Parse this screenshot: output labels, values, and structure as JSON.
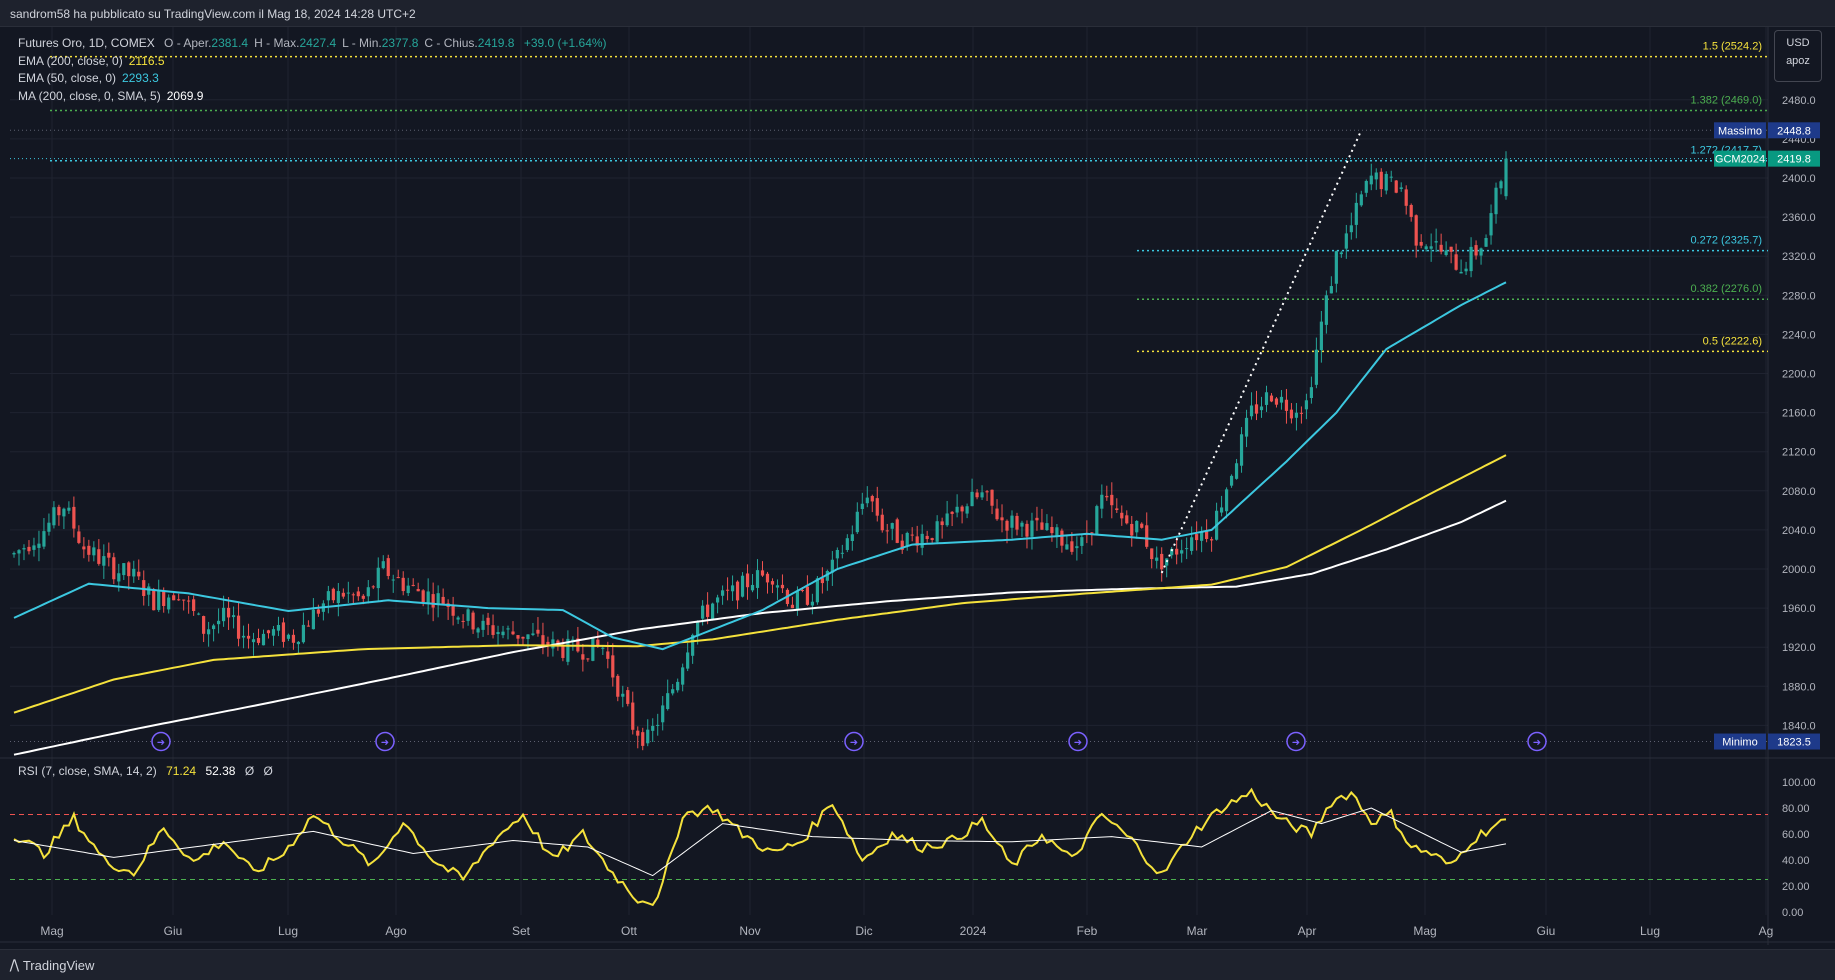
{
  "header": {
    "publisher": "sandrom58 ha pubblicato su TradingView.com il Mag 18, 2024 14:28 UTC+2"
  },
  "legend": {
    "symbol": "Futures Oro, 1D, COMEX",
    "ohlc": [
      {
        "label": "O - Aper.",
        "value": "2381.4"
      },
      {
        "label": "H - Max.",
        "value": "2427.4"
      },
      {
        "label": "L - Min.",
        "value": "2377.8"
      },
      {
        "label": "C - Chius.",
        "value": "2419.8"
      }
    ],
    "change": "+39.0 (+1.64%)",
    "indicators": [
      {
        "label": "EMA (200, close, 0)",
        "value": "2116.5",
        "color": "#f5e23c"
      },
      {
        "label": "EMA (50, close, 0)",
        "value": "2293.3",
        "color": "#3cc8e0"
      },
      {
        "label": "MA (200, close, 0, SMA, 5)",
        "value": "2069.9",
        "color": "#ffffff"
      }
    ]
  },
  "currency": {
    "code": "USD",
    "sub": "apoz"
  },
  "colors": {
    "bg": "#131722",
    "up": "#26a69a",
    "down": "#ef5350",
    "ema200": "#f5e23c",
    "ema50": "#3cc8e0",
    "sma200": "#ffffff",
    "rsi": "#f5e23c",
    "rsi_ma": "#ffffff",
    "accent_blue": "#1e3a8a",
    "gcm": "#089981"
  },
  "chart_data": [
    {
      "type": "candlestick",
      "title": "Futures Oro, 1D, COMEX",
      "ylim": [
        1800,
        2530
      ],
      "y_ticks": [
        1840.0,
        1880.0,
        1920.0,
        1960.0,
        2000.0,
        2040.0,
        2080.0,
        2120.0,
        2160.0,
        2200.0,
        2240.0,
        2280.0,
        2320.0,
        2360.0,
        2400.0,
        2440.0,
        2480.0
      ],
      "x_labels": [
        "Mag",
        "Giu",
        "Lug",
        "Ago",
        "Set",
        "Ott",
        "Nov",
        "Dic",
        "2024",
        "Feb",
        "Mar",
        "Apr",
        "Mag",
        "Giu",
        "Lug",
        "Ag"
      ],
      "trend_pivots": [
        {
          "i": 0,
          "v": 2015
        },
        {
          "i": 6,
          "v": 2040
        },
        {
          "i": 10,
          "v": 2065
        },
        {
          "i": 14,
          "v": 2022
        },
        {
          "i": 20,
          "v": 2000
        },
        {
          "i": 24,
          "v": 1992
        },
        {
          "i": 28,
          "v": 1968
        },
        {
          "i": 33,
          "v": 1978
        },
        {
          "i": 38,
          "v": 1938
        },
        {
          "i": 42,
          "v": 1950
        },
        {
          "i": 47,
          "v": 1930
        },
        {
          "i": 52,
          "v": 1935
        },
        {
          "i": 56,
          "v": 1930
        },
        {
          "i": 62,
          "v": 1965
        },
        {
          "i": 66,
          "v": 1975
        },
        {
          "i": 70,
          "v": 1968
        },
        {
          "i": 74,
          "v": 2000
        },
        {
          "i": 78,
          "v": 1985
        },
        {
          "i": 82,
          "v": 1975
        },
        {
          "i": 86,
          "v": 1968
        },
        {
          "i": 90,
          "v": 1952
        },
        {
          "i": 94,
          "v": 1940
        },
        {
          "i": 99,
          "v": 1935
        },
        {
          "i": 103,
          "v": 1932
        },
        {
          "i": 106,
          "v": 1925
        },
        {
          "i": 110,
          "v": 1918
        },
        {
          "i": 114,
          "v": 1918
        },
        {
          "i": 118,
          "v": 1920
        },
        {
          "i": 121,
          "v": 1880
        },
        {
          "i": 124,
          "v": 1840
        },
        {
          "i": 127,
          "v": 1825
        },
        {
          "i": 130,
          "v": 1855
        },
        {
          "i": 133,
          "v": 1890
        },
        {
          "i": 136,
          "v": 1940
        },
        {
          "i": 140,
          "v": 1965
        },
        {
          "i": 144,
          "v": 1975
        },
        {
          "i": 148,
          "v": 1990
        },
        {
          "i": 152,
          "v": 1995
        },
        {
          "i": 156,
          "v": 1965
        },
        {
          "i": 160,
          "v": 1975
        },
        {
          "i": 164,
          "v": 2000
        },
        {
          "i": 168,
          "v": 2040
        },
        {
          "i": 171,
          "v": 2080
        },
        {
          "i": 174,
          "v": 2045
        },
        {
          "i": 178,
          "v": 2030
        },
        {
          "i": 182,
          "v": 2035
        },
        {
          "i": 186,
          "v": 2040
        },
        {
          "i": 190,
          "v": 2065
        },
        {
          "i": 194,
          "v": 2075
        },
        {
          "i": 198,
          "v": 2050
        },
        {
          "i": 202,
          "v": 2045
        },
        {
          "i": 206,
          "v": 2040
        },
        {
          "i": 210,
          "v": 2030
        },
        {
          "i": 214,
          "v": 2025
        },
        {
          "i": 218,
          "v": 2070
        },
        {
          "i": 222,
          "v": 2050
        },
        {
          "i": 226,
          "v": 2040
        },
        {
          "i": 229,
          "v": 2005
        },
        {
          "i": 232,
          "v": 2015
        },
        {
          "i": 236,
          "v": 2035
        },
        {
          "i": 240,
          "v": 2040
        },
        {
          "i": 244,
          "v": 2100
        },
        {
          "i": 248,
          "v": 2160
        },
        {
          "i": 252,
          "v": 2180
        },
        {
          "i": 256,
          "v": 2165
        },
        {
          "i": 259,
          "v": 2170
        },
        {
          "i": 262,
          "v": 2250
        },
        {
          "i": 265,
          "v": 2320
        },
        {
          "i": 268,
          "v": 2350
        },
        {
          "i": 270,
          "v": 2380
        },
        {
          "i": 272,
          "v": 2400
        },
        {
          "i": 275,
          "v": 2395
        },
        {
          "i": 278,
          "v": 2390
        },
        {
          "i": 281,
          "v": 2340
        },
        {
          "i": 284,
          "v": 2335
        },
        {
          "i": 287,
          "v": 2320
        },
        {
          "i": 290,
          "v": 2310
        },
        {
          "i": 293,
          "v": 2325
        },
        {
          "i": 295,
          "v": 2340
        },
        {
          "i": 297,
          "v": 2380
        },
        {
          "i": 299,
          "v": 2420
        }
      ],
      "candle_count": 300,
      "last_candle": {
        "open": 2381.4,
        "high": 2427.4,
        "low": 2377.8,
        "close": 2419.8
      },
      "ema200": [
        {
          "i": 0,
          "v": 1853
        },
        {
          "i": 20,
          "v": 1887
        },
        {
          "i": 40,
          "v": 1907
        },
        {
          "i": 70,
          "v": 1918
        },
        {
          "i": 100,
          "v": 1922
        },
        {
          "i": 125,
          "v": 1921
        },
        {
          "i": 140,
          "v": 1928
        },
        {
          "i": 165,
          "v": 1948
        },
        {
          "i": 190,
          "v": 1965
        },
        {
          "i": 215,
          "v": 1975
        },
        {
          "i": 240,
          "v": 1984
        },
        {
          "i": 255,
          "v": 2002
        },
        {
          "i": 270,
          "v": 2040
        },
        {
          "i": 285,
          "v": 2080
        },
        {
          "i": 299,
          "v": 2116.5
        }
      ],
      "ema50": [
        {
          "i": 0,
          "v": 1950
        },
        {
          "i": 15,
          "v": 1985
        },
        {
          "i": 35,
          "v": 1975
        },
        {
          "i": 55,
          "v": 1957
        },
        {
          "i": 75,
          "v": 1968
        },
        {
          "i": 95,
          "v": 1960
        },
        {
          "i": 110,
          "v": 1958
        },
        {
          "i": 120,
          "v": 1930
        },
        {
          "i": 130,
          "v": 1918
        },
        {
          "i": 150,
          "v": 1958
        },
        {
          "i": 165,
          "v": 2000
        },
        {
          "i": 180,
          "v": 2025
        },
        {
          "i": 200,
          "v": 2030
        },
        {
          "i": 215,
          "v": 2036
        },
        {
          "i": 230,
          "v": 2030
        },
        {
          "i": 240,
          "v": 2040
        },
        {
          "i": 255,
          "v": 2110
        },
        {
          "i": 265,
          "v": 2160
        },
        {
          "i": 275,
          "v": 2225
        },
        {
          "i": 290,
          "v": 2270
        },
        {
          "i": 299,
          "v": 2293.3
        }
      ],
      "sma200": [
        {
          "i": 0,
          "v": 1810
        },
        {
          "i": 25,
          "v": 1837
        },
        {
          "i": 50,
          "v": 1862
        },
        {
          "i": 75,
          "v": 1888
        },
        {
          "i": 100,
          "v": 1915
        },
        {
          "i": 125,
          "v": 1938
        },
        {
          "i": 150,
          "v": 1955
        },
        {
          "i": 175,
          "v": 1967
        },
        {
          "i": 200,
          "v": 1976
        },
        {
          "i": 225,
          "v": 1980
        },
        {
          "i": 245,
          "v": 1982
        },
        {
          "i": 260,
          "v": 1995
        },
        {
          "i": 275,
          "v": 2020
        },
        {
          "i": 290,
          "v": 2048
        },
        {
          "i": 299,
          "v": 2069.9
        }
      ],
      "fib_levels": [
        {
          "label": "1.5 (2524.2)",
          "value": 2524.2,
          "color": "#f5e23c"
        },
        {
          "label": "1.382 (2469.0)",
          "value": 2469.0,
          "color": "#4caf50"
        },
        {
          "label": "1.272 (2417.7)",
          "value": 2417.7,
          "color": "#3cc8e0"
        },
        {
          "label": "0.272 (2325.7)",
          "value": 2325.7,
          "color": "#3cc8e0"
        },
        {
          "label": "0.382 (2276.0)",
          "value": 2276.0,
          "color": "#4caf50"
        },
        {
          "label": "0.5 (2222.6)",
          "value": 2222.6,
          "color": "#f5e23c"
        }
      ],
      "trendline": {
        "from": {
          "i": 230,
          "v": 1996
        },
        "to": {
          "i": 270,
          "v": 2448.8
        }
      },
      "price_labels": [
        {
          "name": "Massimo",
          "value": "2448.8",
          "color": "#1e3a8a"
        },
        {
          "name": "GCM2024",
          "value": "2419.8",
          "color": "#089981"
        },
        {
          "name": "Minimo",
          "value": "1823.5",
          "color": "#1e3a8a"
        }
      ],
      "event_markers": [
        1,
        2,
        3,
        4,
        5,
        6
      ]
    },
    {
      "type": "line",
      "title": "RSI (7, close, SMA, 14, 2)",
      "ylim": [
        0,
        100
      ],
      "y_ticks": [
        0.0,
        20.0,
        40.0,
        60.0,
        80.0,
        100.0
      ],
      "overbought": 75,
      "oversold": 25,
      "rsi_value": "71.24",
      "ma_value": "52.38",
      "extra": [
        "Ø",
        "Ø"
      ],
      "rsi_pivots": [
        {
          "i": 0,
          "v": 60
        },
        {
          "i": 6,
          "v": 45
        },
        {
          "i": 12,
          "v": 72
        },
        {
          "i": 18,
          "v": 40
        },
        {
          "i": 24,
          "v": 30
        },
        {
          "i": 30,
          "v": 65
        },
        {
          "i": 36,
          "v": 38
        },
        {
          "i": 42,
          "v": 55
        },
        {
          "i": 48,
          "v": 30
        },
        {
          "i": 54,
          "v": 45
        },
        {
          "i": 60,
          "v": 75
        },
        {
          "i": 66,
          "v": 55
        },
        {
          "i": 72,
          "v": 35
        },
        {
          "i": 78,
          "v": 70
        },
        {
          "i": 84,
          "v": 40
        },
        {
          "i": 90,
          "v": 25
        },
        {
          "i": 96,
          "v": 55
        },
        {
          "i": 102,
          "v": 75
        },
        {
          "i": 108,
          "v": 40
        },
        {
          "i": 114,
          "v": 60
        },
        {
          "i": 120,
          "v": 30
        },
        {
          "i": 125,
          "v": 10
        },
        {
          "i": 129,
          "v": 8
        },
        {
          "i": 134,
          "v": 75
        },
        {
          "i": 140,
          "v": 80
        },
        {
          "i": 146,
          "v": 60
        },
        {
          "i": 152,
          "v": 45
        },
        {
          "i": 158,
          "v": 55
        },
        {
          "i": 164,
          "v": 85
        },
        {
          "i": 170,
          "v": 40
        },
        {
          "i": 176,
          "v": 60
        },
        {
          "i": 182,
          "v": 50
        },
        {
          "i": 188,
          "v": 55
        },
        {
          "i": 194,
          "v": 70
        },
        {
          "i": 200,
          "v": 35
        },
        {
          "i": 206,
          "v": 60
        },
        {
          "i": 212,
          "v": 40
        },
        {
          "i": 218,
          "v": 75
        },
        {
          "i": 224,
          "v": 55
        },
        {
          "i": 230,
          "v": 28
        },
        {
          "i": 236,
          "v": 60
        },
        {
          "i": 242,
          "v": 80
        },
        {
          "i": 248,
          "v": 92
        },
        {
          "i": 254,
          "v": 70
        },
        {
          "i": 260,
          "v": 60
        },
        {
          "i": 264,
          "v": 85
        },
        {
          "i": 268,
          "v": 92
        },
        {
          "i": 272,
          "v": 70
        },
        {
          "i": 276,
          "v": 75
        },
        {
          "i": 280,
          "v": 50
        },
        {
          "i": 284,
          "v": 45
        },
        {
          "i": 288,
          "v": 35
        },
        {
          "i": 292,
          "v": 55
        },
        {
          "i": 296,
          "v": 65
        },
        {
          "i": 299,
          "v": 71.24
        }
      ],
      "ma_pivots": [
        {
          "i": 0,
          "v": 55
        },
        {
          "i": 20,
          "v": 42
        },
        {
          "i": 40,
          "v": 52
        },
        {
          "i": 60,
          "v": 62
        },
        {
          "i": 80,
          "v": 45
        },
        {
          "i": 100,
          "v": 55
        },
        {
          "i": 115,
          "v": 50
        },
        {
          "i": 128,
          "v": 28
        },
        {
          "i": 142,
          "v": 68
        },
        {
          "i": 160,
          "v": 58
        },
        {
          "i": 180,
          "v": 55
        },
        {
          "i": 200,
          "v": 54
        },
        {
          "i": 220,
          "v": 58
        },
        {
          "i": 238,
          "v": 50
        },
        {
          "i": 252,
          "v": 78
        },
        {
          "i": 262,
          "v": 68
        },
        {
          "i": 272,
          "v": 80
        },
        {
          "i": 290,
          "v": 46
        },
        {
          "i": 299,
          "v": 52.38
        }
      ]
    }
  ]
}
